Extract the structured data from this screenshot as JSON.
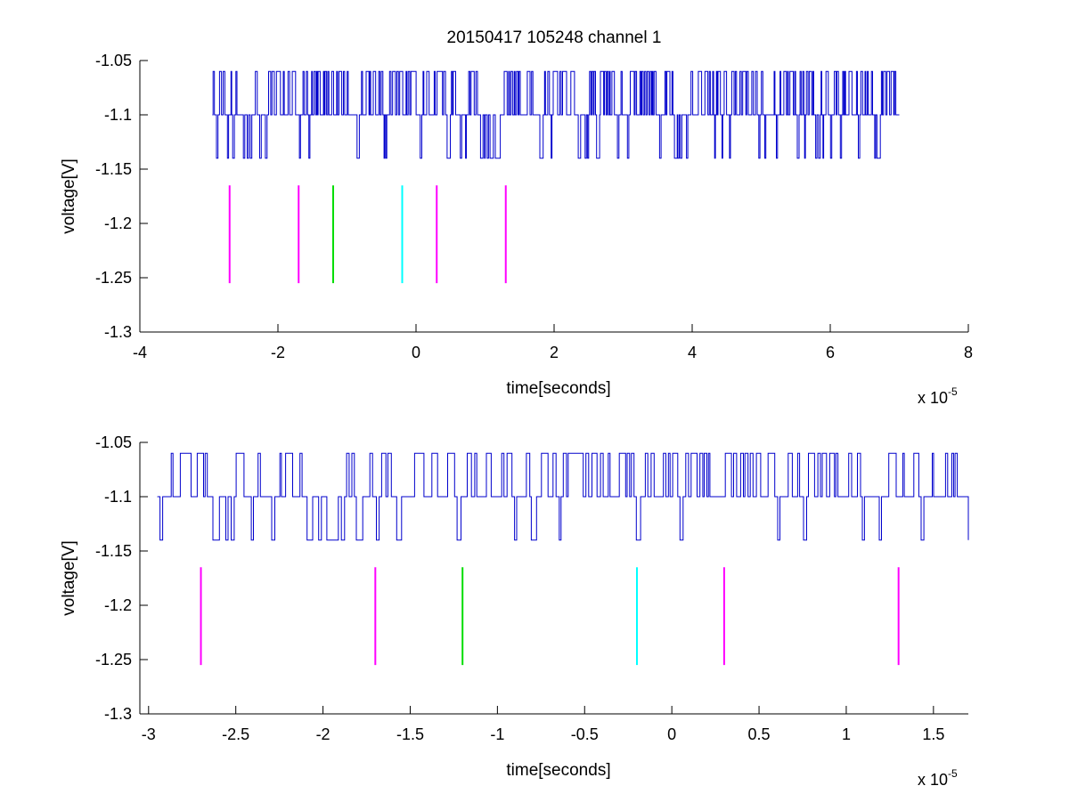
{
  "chart_data": [
    {
      "type": "line",
      "title": "20150417 105248 channel 1",
      "xlabel": "time[seconds]",
      "ylabel": "voltage[V]",
      "x_exponent_label": "x 10",
      "x_exponent": "-5",
      "xlim": [
        -4,
        8
      ],
      "ylim": [
        -1.3,
        -1.05
      ],
      "xticks": [
        -4,
        -2,
        0,
        2,
        4,
        6,
        8
      ],
      "xtick_labels": [
        "-4",
        "-2",
        "0",
        "2",
        "4",
        "6",
        "8"
      ],
      "yticks": [
        -1.05,
        -1.1,
        -1.15,
        -1.2,
        -1.25,
        -1.3
      ],
      "ytick_labels": [
        "-1.05",
        "-1.1",
        "-1.15",
        "-1.2",
        "-1.25",
        "-1.3"
      ],
      "grid": false,
      "signal": {
        "color": "#0000cc",
        "x_start": -2.95,
        "x_end": 7.0,
        "levels": [
          -1.06,
          -1.1,
          -1.14
        ],
        "baseline": -1.1
      },
      "markers": [
        {
          "x": -2.7,
          "y_top": -1.165,
          "y_bottom": -1.255,
          "color": "#ff00ff"
        },
        {
          "x": -1.7,
          "y_top": -1.165,
          "y_bottom": -1.255,
          "color": "#ff00ff"
        },
        {
          "x": -1.2,
          "y_top": -1.165,
          "y_bottom": -1.255,
          "color": "#00dd00"
        },
        {
          "x": -0.2,
          "y_top": -1.165,
          "y_bottom": -1.255,
          "color": "#00ffff"
        },
        {
          "x": 0.3,
          "y_top": -1.165,
          "y_bottom": -1.255,
          "color": "#ff00ff"
        },
        {
          "x": 1.3,
          "y_top": -1.165,
          "y_bottom": -1.255,
          "color": "#ff00ff"
        }
      ]
    },
    {
      "type": "line",
      "title": "",
      "xlabel": "time[seconds]",
      "ylabel": "voltage[V]",
      "x_exponent_label": "x 10",
      "x_exponent": "-5",
      "xlim": [
        -3.05,
        1.7
      ],
      "ylim": [
        -1.3,
        -1.05
      ],
      "xticks": [
        -3,
        -2.5,
        -2,
        -1.5,
        -1,
        -0.5,
        0,
        0.5,
        1,
        1.5
      ],
      "xtick_labels": [
        "-3",
        "-2.5",
        "-2",
        "-1.5",
        "-1",
        "-0.5",
        "0",
        "0.5",
        "1",
        "1.5"
      ],
      "yticks": [
        -1.05,
        -1.1,
        -1.15,
        -1.2,
        -1.25,
        -1.3
      ],
      "ytick_labels": [
        "-1.05",
        "-1.1",
        "-1.15",
        "-1.2",
        "-1.25",
        "-1.3"
      ],
      "grid": false,
      "signal": {
        "color": "#0000cc",
        "x_start": -2.95,
        "x_end": 1.7,
        "levels": [
          -1.06,
          -1.1,
          -1.14
        ],
        "baseline": -1.1
      },
      "markers": [
        {
          "x": -2.7,
          "y_top": -1.165,
          "y_bottom": -1.255,
          "color": "#ff00ff"
        },
        {
          "x": -1.7,
          "y_top": -1.165,
          "y_bottom": -1.255,
          "color": "#ff00ff"
        },
        {
          "x": -1.2,
          "y_top": -1.165,
          "y_bottom": -1.255,
          "color": "#00dd00"
        },
        {
          "x": -0.2,
          "y_top": -1.165,
          "y_bottom": -1.255,
          "color": "#00ffff"
        },
        {
          "x": 0.3,
          "y_top": -1.165,
          "y_bottom": -1.255,
          "color": "#ff00ff"
        },
        {
          "x": 1.3,
          "y_top": -1.165,
          "y_bottom": -1.255,
          "color": "#ff00ff"
        }
      ]
    }
  ]
}
